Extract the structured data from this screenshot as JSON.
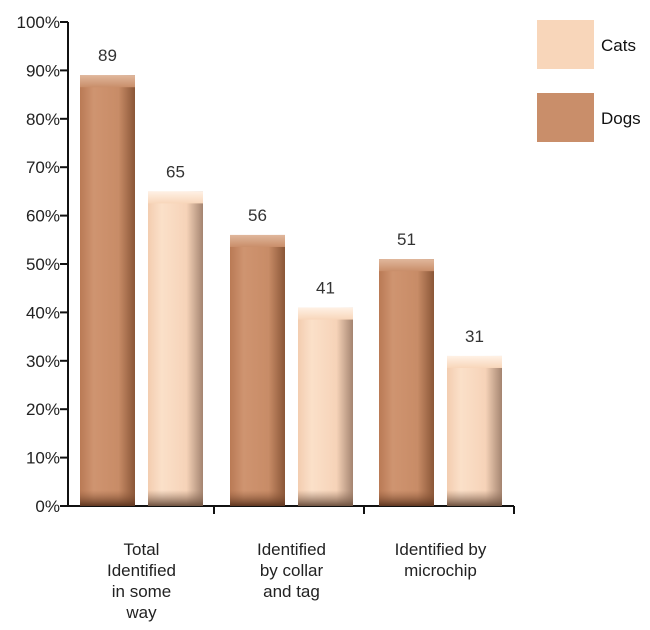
{
  "chart_data": {
    "type": "bar",
    "categories": [
      [
        "Total",
        "Identified",
        "in some",
        "way"
      ],
      [
        "Identified",
        "by collar",
        "and tag"
      ],
      [
        "Identified by",
        "microchip"
      ]
    ],
    "series": [
      {
        "name": "Dogs",
        "values": [
          89,
          56,
          51
        ],
        "color": "#c98e6a"
      },
      {
        "name": "Cats",
        "values": [
          65,
          41,
          31
        ],
        "color": "#f8d6ba"
      }
    ],
    "ylim": [
      0,
      100
    ],
    "yticks": [
      "0%",
      "10%",
      "20%",
      "30%",
      "40%",
      "50%",
      "60%",
      "70%",
      "80%",
      "90%",
      "100%"
    ],
    "legend_placement": "top-right",
    "grid": false
  }
}
